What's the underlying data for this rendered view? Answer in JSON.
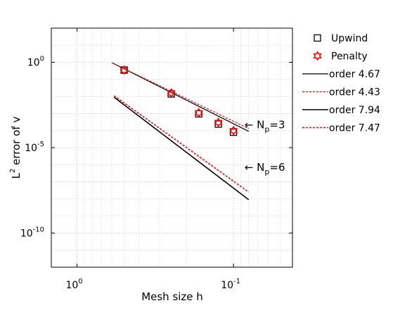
{
  "chart_data": {
    "type": "scatter",
    "title": "",
    "xlabel": "Mesh size h",
    "ylabel_main": "L",
    "ylabel_sup": "2",
    "ylabel_rest": " error of v",
    "x_scale": "log",
    "y_scale": "log",
    "x_reversed": true,
    "xlim": [
      1.46,
      0.042
    ],
    "ylim": [
      1e-12,
      100
    ],
    "grid": true,
    "x_major_ticks": [
      {
        "value": 1,
        "base": "10",
        "exp": "0"
      },
      {
        "value": 0.1,
        "base": "10",
        "exp": "-1"
      }
    ],
    "y_major_ticks": [
      {
        "value": 1,
        "base": "10",
        "exp": "0"
      },
      {
        "value": 1e-05,
        "base": "10",
        "exp": "-5"
      },
      {
        "value": 1e-10,
        "base": "10",
        "exp": "-10"
      }
    ],
    "legend_position": "outside-right",
    "series": [
      {
        "name": "Upwind",
        "kind": "marker",
        "marker": "square",
        "color": "#000000",
        "x": [
          0.5,
          0.25,
          0.1667,
          0.125,
          0.1
        ],
        "y": [
          0.35,
          0.014,
          0.00095,
          0.00024,
          8e-05
        ]
      },
      {
        "name": "Penalty",
        "kind": "marker",
        "marker": "star",
        "color": "#ff0000",
        "x": [
          0.5,
          0.25,
          0.1667,
          0.125,
          0.1
        ],
        "y": [
          0.35,
          0.016,
          0.0011,
          0.0003,
          0.0001
        ]
      },
      {
        "name": "order 4.67",
        "kind": "line",
        "color": "#000000",
        "dash": "solid",
        "width": 1.2,
        "x": [
          0.6,
          0.08
        ],
        "y": [
          0.95,
          9e-05
        ]
      },
      {
        "name": "order 4.43",
        "kind": "line",
        "color": "#ff0000",
        "dash": "dotted",
        "width": 1.2,
        "x": [
          0.6,
          0.08
        ],
        "y": [
          0.95,
          0.00013
        ]
      },
      {
        "name": "order 7.94",
        "kind": "line",
        "color": "#000000",
        "dash": "solid",
        "width": 1.6,
        "x": [
          0.58,
          0.08
        ],
        "y": [
          0.009,
          9e-09
        ]
      },
      {
        "name": "order 7.47",
        "kind": "line",
        "color": "#ff0000",
        "dash": "dotted",
        "width": 1.6,
        "x": [
          0.58,
          0.08
        ],
        "y": [
          0.011,
          2.5e-08
        ]
      }
    ],
    "annotations": [
      {
        "arrow": "←",
        "main": "N",
        "sub": "p",
        "rest": "=3",
        "x": 0.085,
        "y": 0.00022
      },
      {
        "arrow": "←",
        "main": "N",
        "sub": "p",
        "rest": "=6",
        "x": 0.085,
        "y": 7e-07
      }
    ]
  }
}
